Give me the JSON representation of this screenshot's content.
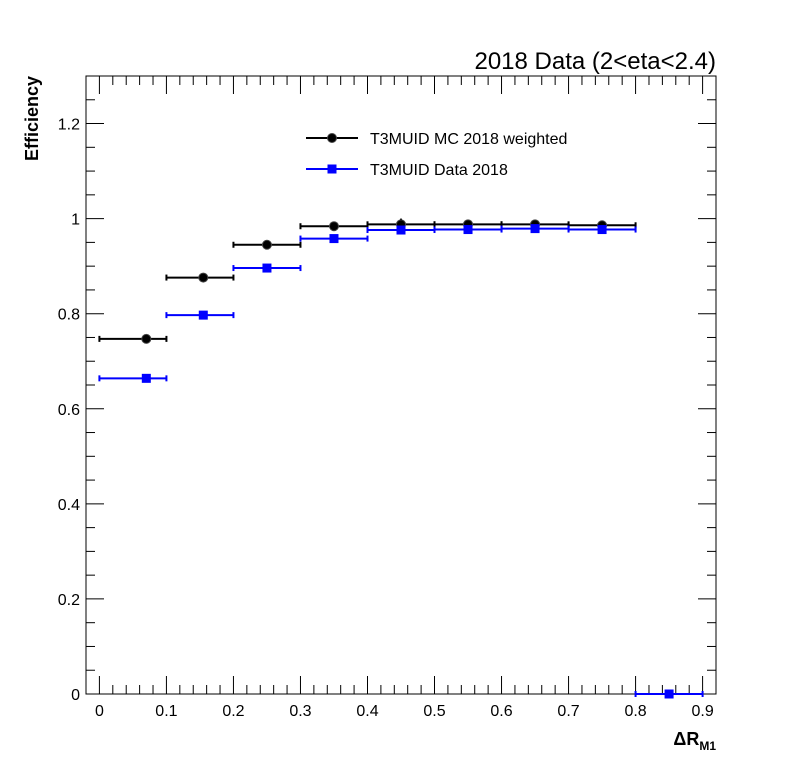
{
  "chart_data": {
    "type": "scatter",
    "title": "2018 Data (2<eta<2.4)",
    "xlabel": "ΔR",
    "xlabel_sub": "M1",
    "ylabel": "Efficiency",
    "xlim": [
      -0.02,
      0.92
    ],
    "ylim": [
      0,
      1.3
    ],
    "x_ticks": [
      "0",
      "0.1",
      "0.2",
      "0.3",
      "0.4",
      "0.5",
      "0.6",
      "0.7",
      "0.8",
      "0.9"
    ],
    "y_ticks": [
      "0",
      "0.2",
      "0.4",
      "0.6",
      "0.8",
      "1",
      "1.2"
    ],
    "grid": false,
    "legend_position": "top-center",
    "series": [
      {
        "name": "T3MUID MC 2018 weighted",
        "color": "#000000",
        "marker": "circle",
        "points": [
          {
            "x": 0.07,
            "xlo": 0.0,
            "xhi": 0.1,
            "y": 0.747,
            "yerr": 0.004
          },
          {
            "x": 0.155,
            "xlo": 0.1,
            "xhi": 0.2,
            "y": 0.876,
            "yerr": 0.004
          },
          {
            "x": 0.25,
            "xlo": 0.2,
            "xhi": 0.3,
            "y": 0.945,
            "yerr": 0.003
          },
          {
            "x": 0.35,
            "xlo": 0.3,
            "xhi": 0.4,
            "y": 0.984,
            "yerr": 0.003
          },
          {
            "x": 0.45,
            "xlo": 0.4,
            "xhi": 0.5,
            "y": 0.988,
            "yerr": 0.012
          },
          {
            "x": 0.55,
            "xlo": 0.5,
            "xhi": 0.6,
            "y": 0.988,
            "yerr": 0.003
          },
          {
            "x": 0.65,
            "xlo": 0.6,
            "xhi": 0.7,
            "y": 0.988,
            "yerr": 0.003
          },
          {
            "x": 0.75,
            "xlo": 0.7,
            "xhi": 0.8,
            "y": 0.986,
            "yerr": 0.003
          }
        ]
      },
      {
        "name": "T3MUID Data 2018",
        "color": "#0000ff",
        "marker": "square",
        "points": [
          {
            "x": 0.07,
            "xlo": 0.0,
            "xhi": 0.1,
            "y": 0.664,
            "yerr": 0.003
          },
          {
            "x": 0.155,
            "xlo": 0.1,
            "xhi": 0.2,
            "y": 0.797,
            "yerr": 0.003
          },
          {
            "x": 0.25,
            "xlo": 0.2,
            "xhi": 0.3,
            "y": 0.896,
            "yerr": 0.003
          },
          {
            "x": 0.35,
            "xlo": 0.3,
            "xhi": 0.4,
            "y": 0.958,
            "yerr": 0.003
          },
          {
            "x": 0.45,
            "xlo": 0.4,
            "xhi": 0.5,
            "y": 0.976,
            "yerr": 0.003
          },
          {
            "x": 0.55,
            "xlo": 0.5,
            "xhi": 0.6,
            "y": 0.977,
            "yerr": 0.003
          },
          {
            "x": 0.65,
            "xlo": 0.6,
            "xhi": 0.7,
            "y": 0.979,
            "yerr": 0.003
          },
          {
            "x": 0.75,
            "xlo": 0.7,
            "xhi": 0.8,
            "y": 0.977,
            "yerr": 0.003
          },
          {
            "x": 0.85,
            "xlo": 0.8,
            "xhi": 0.9,
            "y": 0.0,
            "yerr": 0.0
          }
        ]
      }
    ]
  }
}
